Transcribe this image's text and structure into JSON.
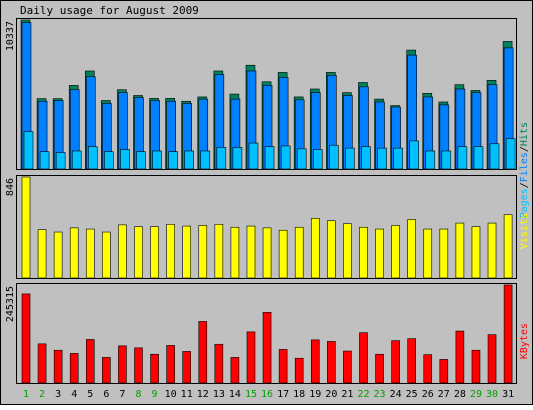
{
  "title": "Daily usage for August 2009",
  "colors": {
    "background": "#c0c0c0",
    "frame": "#000000",
    "hits": "#00805c",
    "files": "#0080ff",
    "pages": "#00c0ff",
    "visits": "#ffff00",
    "kbytes": "#ff0000",
    "weekend_label": "#00a000",
    "weekday_label": "#000000"
  },
  "chart_data": [
    {
      "type": "bar",
      "name": "hits-files-pages",
      "categories": [
        "1",
        "2",
        "3",
        "4",
        "5",
        "6",
        "7",
        "8",
        "9",
        "10",
        "11",
        "12",
        "13",
        "14",
        "15",
        "16",
        "17",
        "18",
        "19",
        "20",
        "21",
        "22",
        "23",
        "24",
        "25",
        "26",
        "27",
        "28",
        "29",
        "30",
        "31"
      ],
      "ymax_label": "10337",
      "ylim": [
        0,
        10337
      ],
      "axis_title_parts": [
        "Pages",
        "Files",
        "Hits"
      ],
      "series": [
        {
          "name": "Hits",
          "values": [
            10337,
            4880,
            4880,
            5800,
            6800,
            4750,
            5500,
            5100,
            4900,
            4900,
            4700,
            5000,
            6800,
            5200,
            7200,
            6050,
            6700,
            5000,
            5550,
            6700,
            5300,
            6000,
            4850,
            4400,
            8250,
            5250,
            4650,
            5850,
            5450,
            6150,
            8850
          ]
        },
        {
          "name": "Files",
          "values": [
            10150,
            4700,
            4750,
            5500,
            6400,
            4550,
            5300,
            4950,
            4750,
            4700,
            4550,
            4850,
            6550,
            4850,
            6800,
            5800,
            6350,
            4800,
            5300,
            6500,
            5100,
            5700,
            4650,
            4300,
            7900,
            5000,
            4450,
            5550,
            5300,
            5850,
            8400
          ]
        },
        {
          "name": "Pages",
          "values": [
            2600,
            1200,
            1150,
            1250,
            1550,
            1200,
            1350,
            1200,
            1250,
            1200,
            1250,
            1250,
            1500,
            1500,
            1800,
            1550,
            1600,
            1400,
            1350,
            1650,
            1450,
            1550,
            1450,
            1450,
            1950,
            1250,
            1250,
            1550,
            1550,
            1750,
            2100
          ]
        }
      ]
    },
    {
      "type": "bar",
      "name": "visits",
      "categories": [
        "1",
        "2",
        "3",
        "4",
        "5",
        "6",
        "7",
        "8",
        "9",
        "10",
        "11",
        "12",
        "13",
        "14",
        "15",
        "16",
        "17",
        "18",
        "19",
        "20",
        "21",
        "22",
        "23",
        "24",
        "25",
        "26",
        "27",
        "28",
        "29",
        "30",
        "31"
      ],
      "ymax_label": "846",
      "ylim": [
        0,
        846
      ],
      "axis_title": "Visits",
      "series": [
        {
          "name": "Visits",
          "values": [
            846,
            405,
            385,
            420,
            410,
            385,
            445,
            430,
            430,
            450,
            435,
            440,
            450,
            425,
            435,
            420,
            400,
            425,
            500,
            480,
            455,
            425,
            410,
            440,
            490,
            410,
            410,
            460,
            430,
            460,
            530
          ]
        }
      ]
    },
    {
      "type": "bar",
      "name": "kbytes",
      "categories": [
        "1",
        "2",
        "3",
        "4",
        "5",
        "6",
        "7",
        "8",
        "9",
        "10",
        "11",
        "12",
        "13",
        "14",
        "15",
        "16",
        "17",
        "18",
        "19",
        "20",
        "21",
        "22",
        "23",
        "24",
        "25",
        "26",
        "27",
        "28",
        "29",
        "30",
        "31"
      ],
      "ymax_label": "245315",
      "ylim": [
        0,
        245315
      ],
      "axis_title": "KBytes",
      "series": [
        {
          "name": "KBytes",
          "values": [
            223000,
            98000,
            82000,
            74000,
            109000,
            64000,
            93000,
            88000,
            72000,
            94000,
            79000,
            154000,
            97000,
            64000,
            128000,
            177000,
            84000,
            62000,
            108000,
            104000,
            80000,
            126000,
            72000,
            106000,
            111000,
            71000,
            59000,
            130000,
            82000,
            121000,
            245315
          ]
        }
      ]
    }
  ],
  "x_labels": [
    "1",
    "2",
    "3",
    "4",
    "5",
    "6",
    "7",
    "8",
    "9",
    "10",
    "11",
    "12",
    "13",
    "14",
    "15",
    "16",
    "17",
    "18",
    "19",
    "20",
    "21",
    "22",
    "23",
    "24",
    "25",
    "26",
    "27",
    "28",
    "29",
    "30",
    "31"
  ],
  "weekend_days": [
    1,
    2,
    8,
    9,
    15,
    16,
    22,
    23,
    29,
    30
  ]
}
